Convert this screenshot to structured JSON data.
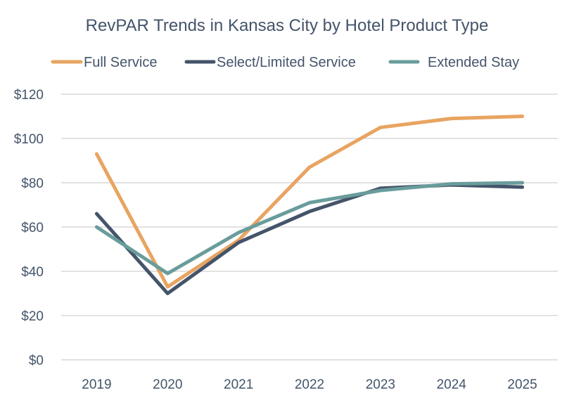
{
  "chart_data": {
    "type": "line",
    "title": "RevPAR Trends in Kansas City by Hotel Product Type",
    "xlabel": "",
    "ylabel": "",
    "categories": [
      "2019",
      "2020",
      "2021",
      "2022",
      "2023",
      "2024",
      "2025"
    ],
    "ylim": [
      0,
      120
    ],
    "yticks": [
      0,
      20,
      40,
      60,
      80,
      100,
      120
    ],
    "ytick_labels": [
      "$0",
      "$20",
      "$40",
      "$60",
      "$80",
      "$100",
      "$120"
    ],
    "grid": true,
    "legend_position": "top",
    "series": [
      {
        "name": "Full Service",
        "color": "#E8A461",
        "values": [
          93,
          33,
          54,
          87,
          105,
          109,
          110
        ]
      },
      {
        "name": "Select/Limited Service",
        "color": "#44546A",
        "values": [
          66,
          30,
          53,
          67,
          77.5,
          79,
          78
        ]
      },
      {
        "name": "Extended Stay",
        "color": "#6A9C9C",
        "values": [
          60,
          39,
          57.5,
          71,
          76.5,
          79.5,
          80
        ]
      }
    ]
  }
}
